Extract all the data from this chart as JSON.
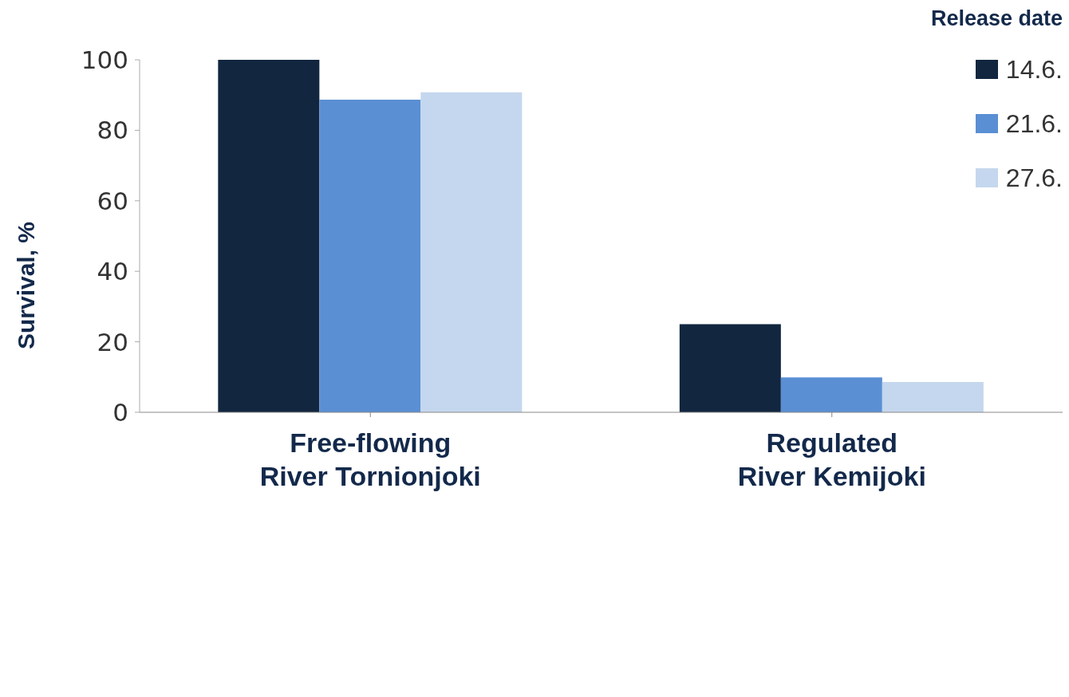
{
  "chart_data": {
    "type": "bar",
    "ylabel": "Survival, %",
    "legend_title": "Release date",
    "categories": [
      "Free-flowing\nRiver Tornionjoki",
      "Regulated\nRiver Kemijoki"
    ],
    "series": [
      {
        "name": "14.6.",
        "color": "#12263f",
        "values": [
          100,
          25
        ]
      },
      {
        "name": "21.6.",
        "color": "#5a8fd4",
        "values": [
          88.7,
          9.9
        ]
      },
      {
        "name": "27.6.",
        "color": "#c5d7ee",
        "values": [
          90.8,
          8.6
        ]
      }
    ],
    "ylim": [
      0,
      100
    ],
    "yticks": [
      0,
      20,
      40,
      60,
      80,
      100
    ],
    "grid": false,
    "legend": "top right"
  }
}
